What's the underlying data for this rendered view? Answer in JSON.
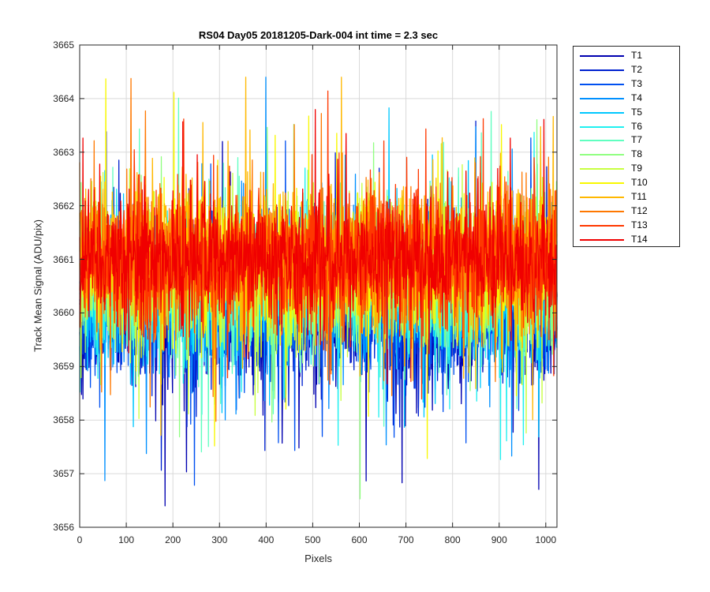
{
  "chart_data": {
    "type": "line",
    "title": "RS04 Day05 20181205-Dark-004 int time = 2.3 sec",
    "xlabel": "Pixels",
    "ylabel": "Track Mean Signal (ADU/pix)",
    "xlim": [
      0,
      1024
    ],
    "ylim": [
      3656,
      3665
    ],
    "xticks": [
      "0",
      "100",
      "200",
      "300",
      "400",
      "500",
      "600",
      "700",
      "800",
      "900",
      "1000"
    ],
    "yticks": [
      "3656",
      "3657",
      "3658",
      "3659",
      "3660",
      "3661",
      "3662",
      "3663",
      "3664",
      "3665"
    ],
    "grid": true,
    "legend_position": "outside-right",
    "n_points": 1024,
    "series": [
      {
        "name": "T1",
        "color": "#0000b0",
        "mean": 3660.0,
        "amplitude": 1.3
      },
      {
        "name": "T2",
        "color": "#0022d0",
        "mean": 3660.1,
        "amplitude": 1.2
      },
      {
        "name": "T3",
        "color": "#0050f0",
        "mean": 3660.2,
        "amplitude": 1.2
      },
      {
        "name": "T4",
        "color": "#0090ff",
        "mean": 3660.3,
        "amplitude": 1.2
      },
      {
        "name": "T5",
        "color": "#00c8ff",
        "mean": 3660.4,
        "amplitude": 1.2
      },
      {
        "name": "T6",
        "color": "#20f0f0",
        "mean": 3660.5,
        "amplitude": 1.2
      },
      {
        "name": "T7",
        "color": "#60ffc0",
        "mean": 3660.6,
        "amplitude": 1.2
      },
      {
        "name": "T8",
        "color": "#90ff80",
        "mean": 3660.7,
        "amplitude": 1.2
      },
      {
        "name": "T9",
        "color": "#c8ff40",
        "mean": 3660.8,
        "amplitude": 1.2
      },
      {
        "name": "T10",
        "color": "#f8f800",
        "mean": 3660.9,
        "amplitude": 1.2
      },
      {
        "name": "T11",
        "color": "#ffb800",
        "mean": 3661.0,
        "amplitude": 1.2
      },
      {
        "name": "T12",
        "color": "#ff7800",
        "mean": 3661.0,
        "amplitude": 1.2
      },
      {
        "name": "T13",
        "color": "#ff3800",
        "mean": 3661.0,
        "amplitude": 1.2
      },
      {
        "name": "T14",
        "color": "#f00000",
        "mean": 3661.0,
        "amplitude": 1.0
      }
    ]
  }
}
